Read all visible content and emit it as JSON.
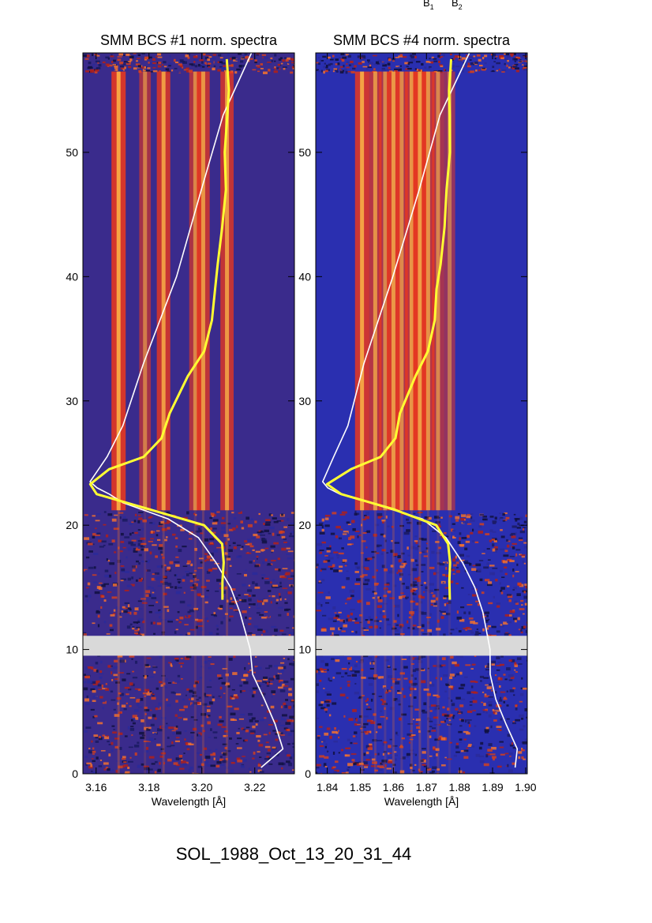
{
  "header_labels": {
    "b1": "B",
    "b1_sub": "1",
    "b2": "B",
    "b2_sub": "2"
  },
  "footer": {
    "event_id": "SOL_1988_Oct_13_20_31_44"
  },
  "chart_data": [
    {
      "type": "heatmap",
      "title": "SMM BCS #1 norm. spectra",
      "xlabel": "Wavelength [Å]",
      "ylabel": "",
      "xlim": [
        3.155,
        3.235
      ],
      "ylim": [
        0,
        58
      ],
      "xticks": [
        "3.16",
        "3.18",
        "3.20",
        "3.22"
      ],
      "xtick_values": [
        3.16,
        3.18,
        3.2,
        3.22
      ],
      "yticks": [
        "0",
        "10",
        "20",
        "30",
        "40",
        "50"
      ],
      "ytick_values": [
        0,
        10,
        20,
        30,
        40,
        50
      ],
      "data_gap_y": [
        9.5,
        11.1
      ],
      "emission_lines": [
        {
          "wavelength": 3.1685,
          "strength": 1.0
        },
        {
          "wavelength": 3.1785,
          "strength": 0.45
        },
        {
          "wavelength": 3.1855,
          "strength": 0.85
        },
        {
          "wavelength": 3.1975,
          "strength": 0.55
        },
        {
          "wavelength": 3.2005,
          "strength": 0.75
        },
        {
          "wavelength": 3.2095,
          "strength": 0.8
        }
      ],
      "colors": {
        "background": "#3a2b8c",
        "line": "#f0381a",
        "core": "#ffc34a",
        "overlay_white": "#ffffff",
        "overlay_yellow": "#ffff33"
      },
      "series": [
        {
          "color": "white",
          "x": [
            3.2225,
            3.2305,
            3.2275,
            3.2235,
            3.2195,
            3.218,
            3.2165,
            3.2145,
            3.211,
            3.2055,
            3.1985,
            3.1875,
            3.17,
            3.165,
            3.1605,
            3.158,
            3.164,
            3.17,
            3.178,
            3.1905,
            3.2,
            3.208,
            3.219
          ],
          "y": [
            0.5,
            2,
            4,
            6,
            8,
            10,
            11.5,
            13,
            15,
            17,
            19,
            20.5,
            21.8,
            22.5,
            23.0,
            23.5,
            25.5,
            28,
            33,
            40,
            47,
            53,
            58
          ]
        },
        {
          "color": "yellow",
          "x": [
            3.208,
            3.208,
            3.208,
            3.2075,
            3.201,
            3.18,
            3.16,
            3.158,
            3.165,
            3.178,
            3.185,
            3.188,
            3.195,
            3.201,
            3.204,
            3.205,
            3.206,
            3.208,
            3.2085,
            3.209,
            3.209,
            3.2095,
            3.2095
          ],
          "y": [
            14,
            15.5,
            17,
            18.5,
            20,
            21.3,
            22.5,
            23.3,
            24.5,
            25.5,
            27,
            29,
            32,
            34,
            36.5,
            39,
            41,
            44,
            47,
            50,
            53,
            55,
            57.5
          ]
        }
      ]
    },
    {
      "type": "heatmap",
      "title": "SMM BCS #4 norm. spectra",
      "xlabel": "Wavelength [Å]",
      "ylabel": "",
      "xlim": [
        1.8365,
        1.9005
      ],
      "ylim": [
        0,
        58
      ],
      "xticks": [
        "1.84",
        "1.85",
        "1.86",
        "1.87",
        "1.88",
        "1.89",
        "1.90"
      ],
      "xtick_values": [
        1.84,
        1.85,
        1.86,
        1.87,
        1.88,
        1.89,
        1.9
      ],
      "yticks": [
        "0",
        "10",
        "20",
        "30",
        "40",
        "50"
      ],
      "ytick_values": [
        0,
        10,
        20,
        30,
        40,
        50
      ],
      "data_gap_y": [
        9.5,
        11.1
      ],
      "emission_lines": [
        {
          "wavelength": 1.8505,
          "strength": 0.95
        },
        {
          "wavelength": 1.8545,
          "strength": 0.7
        },
        {
          "wavelength": 1.8575,
          "strength": 0.55
        },
        {
          "wavelength": 1.86,
          "strength": 0.8
        },
        {
          "wavelength": 1.8625,
          "strength": 0.6
        },
        {
          "wavelength": 1.8655,
          "strength": 0.75
        },
        {
          "wavelength": 1.868,
          "strength": 0.85
        },
        {
          "wavelength": 1.8705,
          "strength": 0.7
        },
        {
          "wavelength": 1.8735,
          "strength": 0.55
        },
        {
          "wavelength": 1.877,
          "strength": 0.35
        }
      ],
      "colors": {
        "background": "#2a2fb0",
        "line": "#f0381a",
        "core": "#ffc34a",
        "overlay_white": "#ffffff",
        "overlay_yellow": "#ffff33"
      },
      "series": [
        {
          "color": "white",
          "x": [
            1.897,
            1.8975,
            1.894,
            1.891,
            1.8895,
            1.889,
            1.888,
            1.887,
            1.8845,
            1.881,
            1.876,
            1.869,
            1.853,
            1.844,
            1.84,
            1.8385,
            1.842,
            1.846,
            1.851,
            1.86,
            1.868,
            1.874,
            1.883
          ],
          "y": [
            0.5,
            2,
            4,
            6,
            8,
            10,
            11.5,
            13,
            15,
            17,
            19,
            20.5,
            21.8,
            22.5,
            23.0,
            23.5,
            25.5,
            28,
            33,
            40,
            47,
            53,
            58
          ]
        },
        {
          "color": "yellow",
          "x": [
            1.877,
            1.877,
            1.877,
            1.8765,
            1.873,
            1.86,
            1.844,
            1.84,
            1.847,
            1.856,
            1.86,
            1.862,
            1.866,
            1.87,
            1.8725,
            1.8735,
            1.8745,
            1.8755,
            1.876,
            1.8765,
            1.877,
            1.8775,
            1.8775
          ],
          "y": [
            14,
            15.5,
            17,
            18.5,
            20,
            21.3,
            22.5,
            23.3,
            24.5,
            25.5,
            27,
            29,
            32,
            34,
            36.5,
            39,
            41,
            44,
            47,
            50,
            53,
            55,
            57.5
          ]
        }
      ]
    }
  ]
}
